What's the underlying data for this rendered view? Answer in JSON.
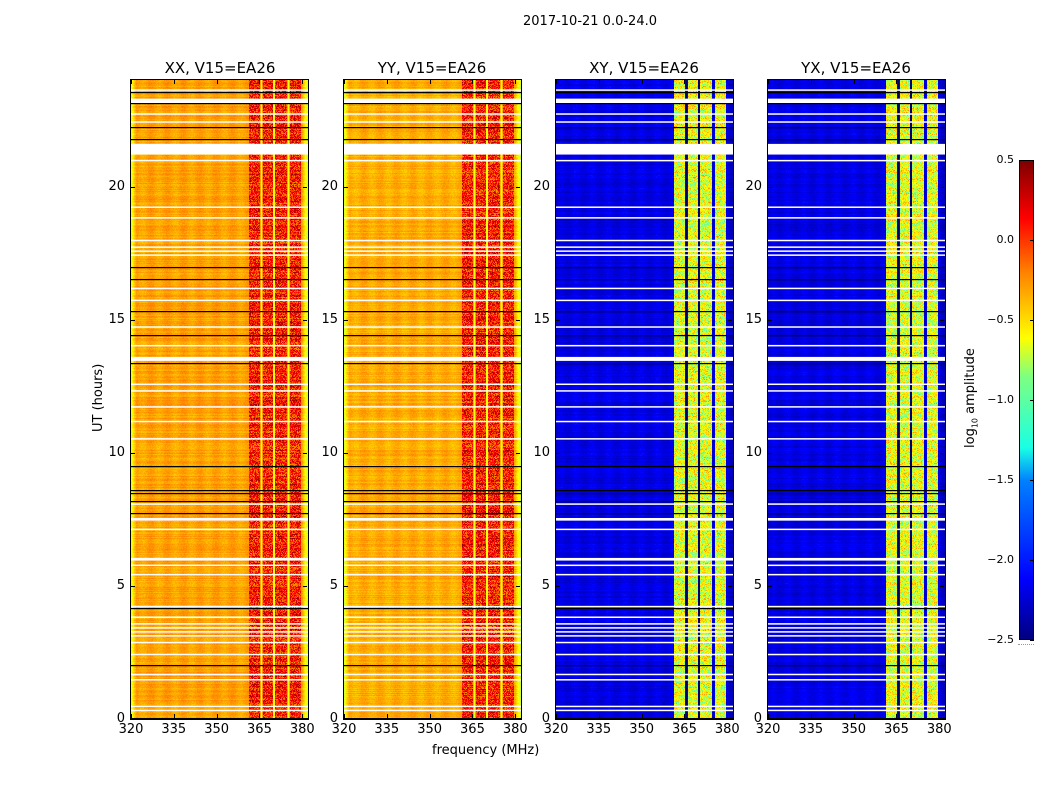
{
  "figure": {
    "suptitle": "2017-10-21 0.0-24.0"
  },
  "chart_data": {
    "type": "heatmap",
    "title": "2017-10-21 0.0-24.0",
    "xlabel": "frequency (MHz)",
    "ylabel": "UT (hours)",
    "xlim": [
      320,
      382
    ],
    "ylim": [
      0,
      24
    ],
    "xticks": [
      320,
      335,
      350,
      365,
      380
    ],
    "yticks": [
      0,
      5,
      10,
      15,
      20
    ],
    "colormap": "jet",
    "colorbar": {
      "label_main": "log",
      "label_sub": "10",
      "label_tail": " amplitude",
      "range": [
        -2.5,
        0.5
      ],
      "ticks": [
        0.5,
        0.0,
        -0.5,
        -1.0,
        -1.5,
        -2.0,
        -2.5
      ],
      "tick_labels": [
        "0.5",
        "0.0",
        "−0.5",
        "−1.0",
        "−1.5",
        "−2.0",
        "−2.5"
      ]
    },
    "panels": [
      {
        "name": "XX",
        "title": "XX, V15=EA26",
        "baseline": -0.35,
        "band_level": 0.05,
        "edge_level": -0.75
      },
      {
        "name": "YY",
        "title": "YY, V15=EA26",
        "baseline": -0.38,
        "band_level": 0.05,
        "edge_level": -0.75
      },
      {
        "name": "XY",
        "title": "XY, V15=EA26",
        "baseline": -2.2,
        "band_level": -0.7,
        "edge_level": -2.3
      },
      {
        "name": "YX",
        "title": "YX, V15=EA26",
        "baseline": -2.2,
        "band_level": -0.7,
        "edge_level": -2.3
      }
    ],
    "rfi_bands_mhz": [
      [
        361.5,
        365.3
      ],
      [
        366.3,
        369.6
      ],
      [
        370.6,
        374.8
      ],
      [
        375.6,
        379.6
      ]
    ],
    "band_gaps_mhz": [
      365.8,
      370.1,
      375.2
    ],
    "flagged_gaps_hours": [
      [
        21.2,
        21.6
      ],
      [
        23.1,
        23.3
      ],
      [
        13.45,
        13.6
      ],
      [
        5.95,
        6.05
      ],
      [
        7.45,
        7.55
      ],
      [
        23.6,
        23.65
      ],
      [
        22.4,
        22.45
      ],
      [
        22.7,
        22.75
      ],
      [
        20.95,
        21.0
      ],
      [
        19.2,
        19.25
      ],
      [
        18.8,
        18.85
      ],
      [
        17.95,
        18.0
      ],
      [
        17.7,
        17.75
      ],
      [
        17.55,
        17.6
      ],
      [
        17.4,
        17.45
      ],
      [
        16.15,
        16.2
      ],
      [
        15.7,
        15.75
      ],
      [
        14.7,
        14.75
      ],
      [
        14.0,
        14.05
      ],
      [
        12.55,
        12.6
      ],
      [
        12.3,
        12.35
      ],
      [
        11.7,
        11.75
      ],
      [
        11.15,
        11.2
      ],
      [
        10.5,
        10.55
      ],
      [
        8.05,
        8.1
      ],
      [
        7.1,
        7.15
      ],
      [
        5.75,
        5.8
      ],
      [
        5.4,
        5.45
      ],
      [
        4.2,
        4.25
      ],
      [
        3.8,
        3.85
      ],
      [
        3.55,
        3.6
      ],
      [
        3.4,
        3.45
      ],
      [
        3.25,
        3.3
      ],
      [
        3.1,
        3.15
      ],
      [
        2.85,
        2.9
      ],
      [
        2.4,
        2.45
      ],
      [
        1.65,
        1.7
      ],
      [
        1.45,
        1.5
      ],
      [
        0.45,
        0.5
      ],
      [
        0.3,
        0.35
      ]
    ],
    "black_lines_hours": [
      23.5,
      23.1,
      22.2,
      21.75,
      16.95,
      16.5,
      15.3,
      14.4,
      13.35,
      9.45,
      8.55,
      8.45,
      8.15,
      7.7,
      4.15,
      2.0,
      0.0
    ]
  }
}
